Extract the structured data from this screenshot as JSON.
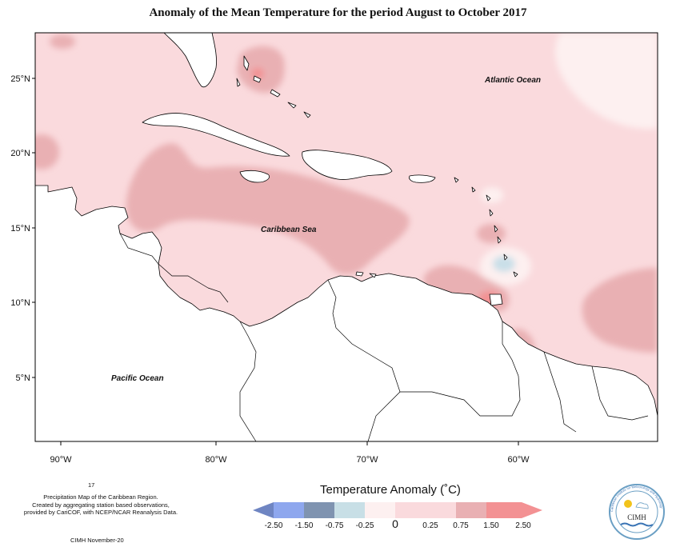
{
  "title": "Anomaly of the Mean Temperature for the period August to October 2017",
  "map": {
    "lat_ticks": [
      "25°N",
      "20°N",
      "15°N",
      "10°N",
      "5°N"
    ],
    "lon_ticks": [
      "90°W",
      "80°W",
      "70°W",
      "60°W"
    ],
    "lon_range": [
      -92,
      -52
    ],
    "lat_range": [
      1.5,
      28
    ],
    "labels": {
      "atlantic": "Atlantic Ocean",
      "caribbean": "Caribbean Sea",
      "pacific": "Pacific Ocean"
    },
    "colors": {
      "land": "#ffffff",
      "base_anomaly": "#fadadd",
      "anomaly_075": "#e9b0b3",
      "anomaly_150": "#f08a8d",
      "neutral": "#fdf0f0",
      "cool": "#c9dfe8",
      "coastline": "#000000"
    }
  },
  "footer": {
    "number": "17",
    "description_lines": [
      "Precipitation Map of the Caribbean Region.",
      "Created by aggregating station based observations,",
      "provided by CariCOF, with NCEP/NCAR Reanalysis Data."
    ],
    "credit": "CIMH November-20"
  },
  "legend": {
    "title": "Temperature Anomaly (˚C)",
    "tick_labels": [
      "-2.50",
      "-1.50",
      "-0.75",
      "-0.25",
      "0",
      "0.25",
      "0.75",
      "1.50",
      "2.50"
    ],
    "colors": [
      "#6f85c2",
      "#8ea7ee",
      "#7f93b0",
      "#c8dfe6",
      "#fdf0f0",
      "#fadadd",
      "#e9b0b3",
      "#f39193"
    ]
  },
  "logo": {
    "text": "CIMH",
    "ring_text": "Caribbean Institute for Meteorology and Hydrology"
  }
}
